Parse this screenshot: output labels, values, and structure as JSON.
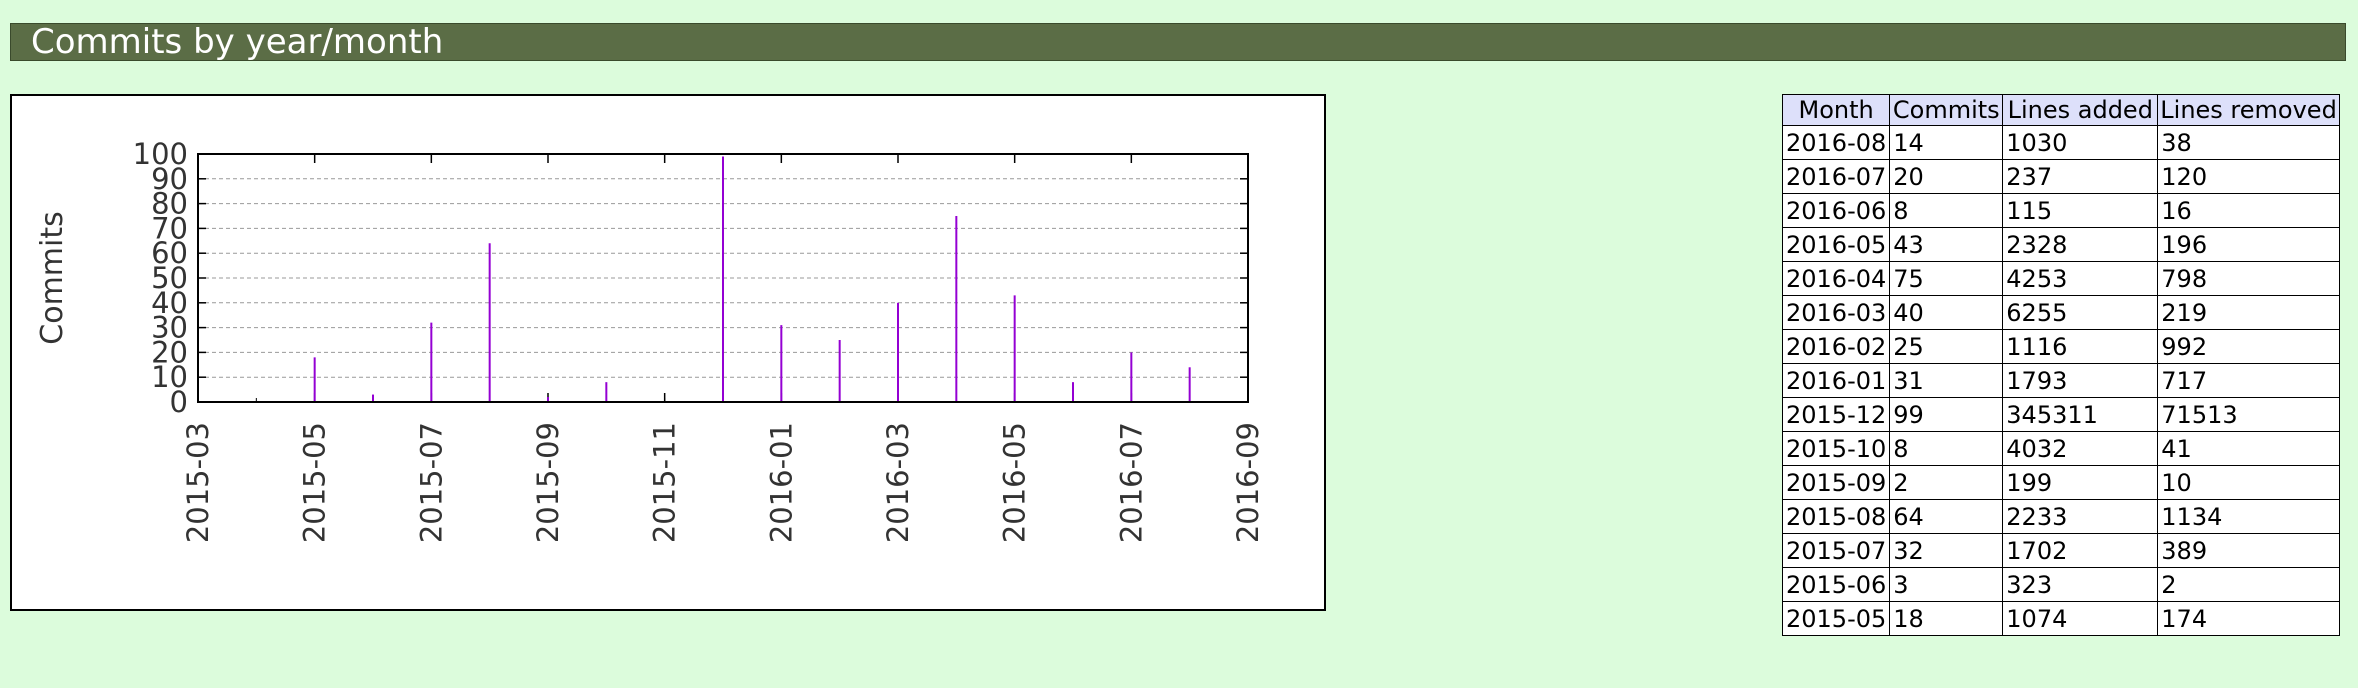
{
  "header": {
    "title": "Commits by year/month"
  },
  "chart_data": {
    "type": "bar",
    "title": "",
    "xlabel": "",
    "ylabel": "Commits",
    "ylim": [
      0,
      100
    ],
    "yticks": [
      0,
      10,
      20,
      30,
      40,
      50,
      60,
      70,
      80,
      90,
      100
    ],
    "xlim": [
      "2015-03",
      "2016-09"
    ],
    "xticks": [
      "2015-03",
      "2015-05",
      "2015-07",
      "2015-09",
      "2015-11",
      "2016-01",
      "2016-03",
      "2016-05",
      "2016-07",
      "2016-09"
    ],
    "grid": true,
    "bar_color": "#9400d3",
    "categories": [
      "2015-05",
      "2015-06",
      "2015-07",
      "2015-08",
      "2015-09",
      "2015-10",
      "2015-12",
      "2016-01",
      "2016-02",
      "2016-03",
      "2016-04",
      "2016-05",
      "2016-06",
      "2016-07",
      "2016-08"
    ],
    "values": [
      18,
      3,
      32,
      64,
      2,
      8,
      99,
      31,
      25,
      40,
      75,
      43,
      8,
      20,
      14
    ]
  },
  "table": {
    "headers": [
      "Month",
      "Commits",
      "Lines added",
      "Lines removed"
    ],
    "rows": [
      [
        "2016-08",
        "14",
        "1030",
        "38"
      ],
      [
        "2016-07",
        "20",
        "237",
        "120"
      ],
      [
        "2016-06",
        "8",
        "115",
        "16"
      ],
      [
        "2016-05",
        "43",
        "2328",
        "196"
      ],
      [
        "2016-04",
        "75",
        "4253",
        "798"
      ],
      [
        "2016-03",
        "40",
        "6255",
        "219"
      ],
      [
        "2016-02",
        "25",
        "1116",
        "992"
      ],
      [
        "2016-01",
        "31",
        "1793",
        "717"
      ],
      [
        "2015-12",
        "99",
        "345311",
        "71513"
      ],
      [
        "2015-10",
        "8",
        "4032",
        "41"
      ],
      [
        "2015-09",
        "2",
        "199",
        "10"
      ],
      [
        "2015-08",
        "64",
        "2233",
        "1134"
      ],
      [
        "2015-07",
        "32",
        "1702",
        "389"
      ],
      [
        "2015-06",
        "3",
        "323",
        "2"
      ],
      [
        "2015-05",
        "18",
        "1074",
        "174"
      ]
    ]
  }
}
